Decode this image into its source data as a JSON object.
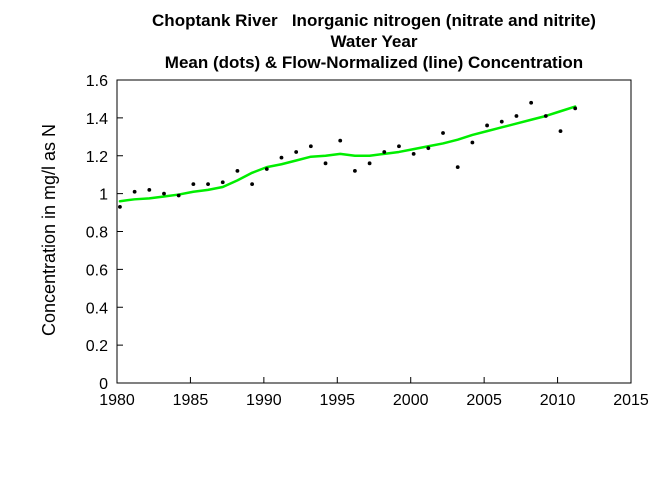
{
  "chart_data": {
    "type": "scatter",
    "title": [
      "Choptank River   Inorganic nitrogen (nitrate and nitrite)",
      "Water Year",
      "Mean (dots) & Flow-Normalized (line) Concentration"
    ],
    "xlabel": "",
    "ylabel": "Concentration in mg/l as N",
    "xlim": [
      1980,
      2015
    ],
    "ylim": [
      0,
      1.6
    ],
    "x_ticks": [
      1980,
      1985,
      1990,
      1995,
      2000,
      2005,
      2010,
      2015
    ],
    "y_ticks": [
      0,
      0.2,
      0.4,
      0.6,
      0.8,
      1,
      1.2,
      1.4,
      1.6
    ],
    "x_tick_labels": [
      "1980",
      "1985",
      "1990",
      "1995",
      "2000",
      "2005",
      "2010",
      "2015"
    ],
    "y_tick_labels": [
      "0",
      "0.2",
      "0.4",
      "0.6",
      "0.8",
      "1",
      "1.2",
      "1.4",
      "1.6"
    ],
    "grid": false,
    "legend": "none",
    "series": [
      {
        "type": "scatter",
        "color": "#000000",
        "x": [
          1980.2,
          1981.2,
          1982.2,
          1983.2,
          1984.2,
          1985.2,
          1986.2,
          1987.2,
          1988.2,
          1989.2,
          1990.2,
          1991.2,
          1992.2,
          1993.2,
          1994.2,
          1995.2,
          1996.2,
          1997.2,
          1998.2,
          1999.2,
          2000.2,
          2001.2,
          2002.2,
          2003.2,
          2004.2,
          2005.2,
          2006.2,
          2007.2,
          2008.2,
          2009.2,
          2010.2,
          2011.2
        ],
        "y": [
          0.93,
          1.01,
          1.02,
          1.0,
          0.99,
          1.05,
          1.05,
          1.06,
          1.12,
          1.05,
          1.13,
          1.19,
          1.22,
          1.25,
          1.16,
          1.28,
          1.12,
          1.16,
          1.22,
          1.25,
          1.21,
          1.24,
          1.32,
          1.14,
          1.27,
          1.36,
          1.38,
          1.41,
          1.48,
          1.41,
          1.33,
          1.45
        ]
      },
      {
        "type": "line",
        "color": "#00ee00",
        "x": [
          1980.2,
          1981.2,
          1982.2,
          1983.2,
          1984.2,
          1985.2,
          1986.2,
          1987.2,
          1988.2,
          1989.2,
          1990.2,
          1991.2,
          1992.2,
          1993.2,
          1994.2,
          1995.2,
          1996.2,
          1997.2,
          1998.2,
          1999.2,
          2000.2,
          2001.2,
          2002.2,
          2003.2,
          2004.2,
          2005.2,
          2006.2,
          2007.2,
          2008.2,
          2009.2,
          2010.2,
          2011.2
        ],
        "y": [
          0.96,
          0.97,
          0.975,
          0.985,
          0.995,
          1.01,
          1.02,
          1.035,
          1.07,
          1.11,
          1.14,
          1.155,
          1.175,
          1.195,
          1.2,
          1.21,
          1.2,
          1.2,
          1.21,
          1.22,
          1.235,
          1.25,
          1.265,
          1.285,
          1.31,
          1.33,
          1.35,
          1.37,
          1.39,
          1.41,
          1.435,
          1.46
        ]
      }
    ]
  }
}
